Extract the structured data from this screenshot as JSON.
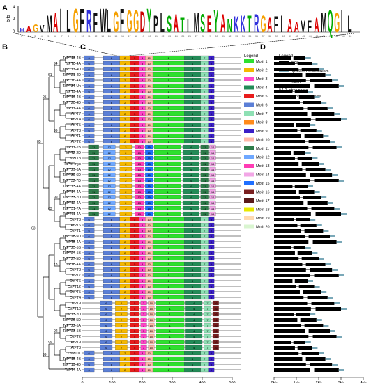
{
  "panels": {
    "a": "A",
    "b": "B",
    "c": "C",
    "d": "D"
  },
  "logo": {
    "ylabel": "bits",
    "yticks": [
      "4",
      "2",
      "0"
    ],
    "residues": [
      "H",
      "A",
      "G",
      "V",
      "M",
      "A",
      "I",
      "L",
      "G",
      "F",
      "R",
      "F",
      "W",
      "L",
      "G",
      "F",
      "G",
      "G",
      "D",
      "Y",
      "P",
      "L",
      "S",
      "A",
      "T",
      "I",
      "M",
      "S",
      "E",
      "Y",
      "A",
      "N",
      "K",
      "K",
      "T",
      "R",
      "G",
      "A",
      "F",
      "I",
      "A",
      "A",
      "V",
      "F",
      "A",
      "M",
      "Q",
      "G",
      "I",
      "L"
    ]
  },
  "genes": [
    {
      "name": "TaPT18-4B",
      "motifs": [
        1,
        2,
        3,
        4,
        5,
        6,
        7,
        8,
        9,
        10,
        11
      ]
    },
    {
      "name": "TaPT8-4A",
      "motifs": [
        1,
        2,
        3,
        4,
        5,
        6,
        7,
        8,
        9,
        10,
        11
      ]
    },
    {
      "name": "TaPT17-4D",
      "motifs": [
        1,
        2,
        3,
        4,
        5,
        6,
        7,
        8,
        9,
        10,
        11
      ]
    },
    {
      "name": "TaPT21-4D",
      "motifs": [
        1,
        2,
        3,
        4,
        5,
        6,
        7,
        8,
        9,
        10,
        11
      ]
    },
    {
      "name": "TaPT10-4A",
      "motifs": [
        1,
        2,
        3,
        4,
        5,
        6,
        7,
        8,
        9,
        10,
        11
      ]
    },
    {
      "name": "TaPT34-Un",
      "motifs": [
        1,
        2,
        3,
        4,
        5,
        6,
        7,
        8,
        9,
        10,
        11
      ]
    },
    {
      "name": "TaPT9-4A",
      "motifs": [
        1,
        2,
        3,
        4,
        5,
        6,
        7,
        8,
        9,
        10,
        11
      ]
    },
    {
      "name": "TaPT16-4B",
      "motifs": [
        1,
        2,
        3,
        4,
        5,
        6,
        7,
        8,
        9,
        10,
        11
      ]
    },
    {
      "name": "TaPT20-4D",
      "motifs": [
        1,
        2,
        3,
        4,
        5,
        6,
        7,
        8,
        9,
        10,
        11
      ]
    },
    {
      "name": "TaPT7-4A",
      "motifs": [
        1,
        2,
        3,
        4,
        5,
        6,
        7,
        8,
        9,
        10,
        11
      ]
    },
    {
      "name": "AtPT7",
      "motifs": [
        1,
        2,
        3,
        4,
        5,
        6,
        7,
        8,
        9,
        10,
        11
      ]
    },
    {
      "name": "AtPT4",
      "motifs": [
        1,
        2,
        3,
        4,
        5,
        6,
        7,
        8,
        9,
        10,
        11
      ]
    },
    {
      "name": "AtPT5",
      "motifs": [
        1,
        2,
        3,
        4,
        5,
        6,
        7,
        8,
        9,
        10,
        11
      ]
    },
    {
      "name": "AtPT3",
      "motifs": [
        1,
        2,
        3,
        4,
        5,
        6,
        7,
        8,
        9,
        10,
        11
      ]
    },
    {
      "name": "AtPT1",
      "motifs": [
        1,
        2,
        3,
        4,
        5,
        6,
        7,
        8,
        9,
        10,
        11
      ]
    },
    {
      "name": "AtPT2",
      "motifs": [
        1,
        2,
        3,
        4,
        5,
        6,
        7,
        8,
        9,
        10,
        11
      ]
    },
    {
      "name": "TaPT1-2B",
      "motifs": [
        11,
        12,
        13,
        14,
        15
      ]
    },
    {
      "name": "TaPT2-2D",
      "motifs": [
        11,
        12,
        13,
        14,
        15
      ]
    },
    {
      "name": "OsPT13",
      "motifs": [
        11,
        12,
        13,
        14,
        15
      ]
    },
    {
      "name": "TaPht-myc",
      "motifs": [
        11,
        12,
        13,
        14,
        15
      ]
    },
    {
      "name": "TaPT29-6A",
      "motifs": [
        11,
        12,
        13,
        14,
        15
      ]
    },
    {
      "name": "TaPT30-6D",
      "motifs": [
        11,
        12,
        13,
        14,
        15
      ]
    },
    {
      "name": "TaPT32-7D",
      "motifs": [
        11,
        12,
        13,
        14,
        15
      ]
    },
    {
      "name": "TaPT13-4A",
      "motifs": [
        11,
        12,
        13,
        14,
        15
      ]
    },
    {
      "name": "TaPT14-4A",
      "motifs": [
        11,
        12,
        13,
        14,
        15
      ]
    },
    {
      "name": "TaPT33-7D",
      "motifs": [
        11,
        12,
        13,
        14,
        15
      ]
    },
    {
      "name": "TaPT12-4A",
      "motifs": [
        11,
        12,
        13,
        14,
        15
      ]
    },
    {
      "name": "TaPT31-7A",
      "motifs": [
        11,
        12,
        13,
        14,
        15
      ]
    },
    {
      "name": "TaPT11-4A",
      "motifs": [
        11,
        12,
        13,
        14,
        15
      ]
    },
    {
      "name": "OsPT3",
      "motifs": [
        1,
        2,
        3,
        4,
        5,
        6,
        7,
        8,
        9,
        10,
        11
      ]
    },
    {
      "name": "AtPT6",
      "motifs": [
        1,
        2,
        3,
        4,
        5,
        6,
        7,
        8,
        9,
        10,
        11
      ]
    },
    {
      "name": "OsPT1",
      "motifs": [
        1,
        2,
        3,
        4,
        5,
        6,
        7,
        8,
        9,
        10,
        11
      ]
    },
    {
      "name": "TaPT28-5D",
      "motifs": [
        1,
        2,
        3,
        4,
        5,
        6,
        7,
        8,
        9,
        10,
        11
      ]
    },
    {
      "name": "TaPT5-4A",
      "motifs": [
        1,
        2,
        3,
        4,
        5,
        6,
        7,
        8,
        9,
        10,
        11
      ]
    },
    {
      "name": "TaPT25-5B",
      "motifs": [
        1,
        2,
        3,
        4,
        5,
        6,
        7,
        8,
        9,
        10,
        11
      ]
    },
    {
      "name": "TaPT24-5B",
      "motifs": [
        1,
        2,
        3,
        4,
        5,
        6,
        7,
        8,
        9,
        10,
        11
      ]
    },
    {
      "name": "TaPT27-5D",
      "motifs": [
        1,
        2,
        3,
        4,
        5,
        6,
        7,
        8,
        9,
        10,
        11
      ]
    },
    {
      "name": "TaPT6-4A",
      "motifs": [
        1,
        2,
        3,
        4,
        5,
        6,
        7,
        8,
        9,
        10,
        11
      ]
    },
    {
      "name": "OsPT8",
      "motifs": [
        1,
        2,
        3,
        4,
        5,
        6,
        7,
        8,
        9,
        10,
        11
      ]
    },
    {
      "name": "OsPT7",
      "motifs": [
        1,
        2,
        3,
        4,
        5,
        6,
        7,
        8,
        9,
        10,
        11
      ]
    },
    {
      "name": "OsPT6",
      "motifs": [
        1,
        2,
        3,
        4,
        5,
        6,
        7,
        8,
        9,
        10,
        11
      ]
    },
    {
      "name": "OsPT12",
      "motifs": [
        1,
        2,
        3,
        4,
        5,
        6,
        7,
        8,
        9,
        10,
        11
      ]
    },
    {
      "name": "OsPT5",
      "motifs": [
        1,
        2,
        3,
        4,
        5,
        6,
        7,
        8,
        9,
        10,
        11
      ]
    },
    {
      "name": "OsPT4",
      "motifs": [
        1,
        2,
        3,
        4,
        5,
        6,
        7,
        8,
        9,
        10,
        11
      ]
    },
    {
      "name": "OsPT9",
      "motifs": [
        16,
        17,
        18,
        19,
        20
      ]
    },
    {
      "name": "OsPT10",
      "motifs": [
        16,
        17,
        18,
        19,
        20
      ]
    },
    {
      "name": "TaPT3-2D",
      "motifs": [
        16,
        17,
        18,
        19,
        20
      ]
    },
    {
      "name": "TaPT26-5D",
      "motifs": [
        16,
        17,
        18,
        19,
        20
      ]
    },
    {
      "name": "TaPT22-5A",
      "motifs": [
        16,
        17,
        18,
        19,
        20
      ]
    },
    {
      "name": "TaPT23-5B",
      "motifs": [
        16,
        17,
        18,
        19,
        20
      ]
    },
    {
      "name": "OsPT2",
      "motifs": [
        16,
        17,
        18,
        19,
        20
      ]
    },
    {
      "name": "AtPT9",
      "motifs": [
        16,
        17,
        18,
        19,
        20
      ]
    },
    {
      "name": "AtPT8",
      "motifs": [
        16,
        17,
        18,
        19,
        20
      ]
    },
    {
      "name": "OsPT11",
      "motifs": [
        1,
        2,
        3,
        4,
        5,
        6,
        7,
        8,
        9,
        10,
        11
      ]
    },
    {
      "name": "TaPT15-4B",
      "motifs": [
        1,
        2,
        3,
        4,
        5,
        6,
        7,
        8,
        9,
        10,
        11
      ]
    },
    {
      "name": "TaPT19-4D",
      "motifs": [
        1,
        2,
        3,
        4,
        5,
        6,
        7,
        8,
        9,
        10,
        11
      ]
    },
    {
      "name": "TaPT4-4A",
      "motifs": [
        1,
        2,
        3,
        4,
        5,
        6,
        7,
        8,
        9,
        10,
        11
      ]
    }
  ],
  "bootstrap": [
    "94",
    "99",
    "99",
    "73",
    "92",
    "61",
    "63",
    "99",
    "95",
    "99",
    "85",
    "63",
    "75",
    "99",
    "96",
    "92",
    "99",
    "97",
    "99",
    "94"
  ],
  "motif_legend": {
    "title": "Legend",
    "items": [
      {
        "label": "Motif 1",
        "color": "#2ee02e"
      },
      {
        "label": "Motif 2",
        "color": "#f5b800"
      },
      {
        "label": "Motif 3",
        "color": "#ff44c8"
      },
      {
        "label": "Motif 4",
        "color": "#228b57"
      },
      {
        "label": "Motif 5",
        "color": "#e81c1c"
      },
      {
        "label": "Motif 6",
        "color": "#5b7fd6"
      },
      {
        "label": "Motif 7",
        "color": "#8ee0b4"
      },
      {
        "label": "Motif 8",
        "color": "#ff8a1a"
      },
      {
        "label": "Motif 9",
        "color": "#3a1fc7"
      },
      {
        "label": "Motif 10",
        "color": "#ffb8a8"
      },
      {
        "label": "Motif 11",
        "color": "#2e7d4a"
      },
      {
        "label": "Motif 12",
        "color": "#6fa8ff"
      },
      {
        "label": "Motif 13",
        "color": "#ff3cb4"
      },
      {
        "label": "Motif 14",
        "color": "#f2a6e6"
      },
      {
        "label": "Motif 15",
        "color": "#1f6fff"
      },
      {
        "label": "Motif 16",
        "color": "#7a1f1f"
      },
      {
        "label": "Motif 17",
        "color": "#5a1a1a"
      },
      {
        "label": "Motif 18",
        "color": "#e8e800"
      },
      {
        "label": "Motif 19",
        "color": "#ffd9b0"
      },
      {
        "label": "Motif 20",
        "color": "#d9f5d0"
      }
    ]
  },
  "motif_axis": {
    "ticks": [
      "0",
      "100",
      "200",
      "300",
      "400",
      "500"
    ]
  },
  "gene_legend": {
    "title": "Legend",
    "items": [
      {
        "label": "CDS",
        "color": "#000000"
      },
      {
        "label": "upstream downstream",
        "color": "#7aa8b8"
      },
      {
        "label": "Intron",
        "color": "#000000"
      }
    ],
    "phase": "0 1 2: intron phase",
    "noscale": "Intron with no scale"
  },
  "gene_axis": {
    "ticks": [
      "0kb",
      "1kb",
      "2kb",
      "3kb",
      "4kb"
    ]
  }
}
